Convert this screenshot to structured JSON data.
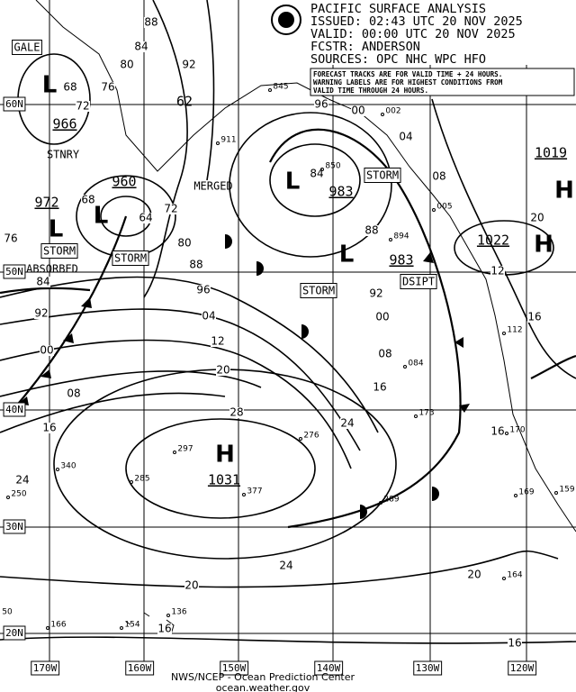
{
  "header": {
    "title": "PACIFIC SURFACE ANALYSIS",
    "issued": "ISSUED: 02:43 UTC 20 NOV 2025",
    "valid": "VALID:  00:00 UTC 20 NOV 2025",
    "forecaster": "FCSTR:  ANDERSON",
    "sources": "SOURCES: OPC NHC WPC HFO"
  },
  "note": [
    "FORECAST TRACKS ARE FOR VALID TIME + 24 HOURS.",
    "WARNING LABELS ARE FOR HIGHEST CONDITIONS FROM",
    "VALID TIME THROUGH 24 HOURS."
  ],
  "longitude_labels": [
    "170W",
    "160W",
    "150W",
    "140W",
    "130W",
    "120W"
  ],
  "latitude_labels": [
    "60N",
    "50N",
    "40N",
    "30N",
    "20N"
  ],
  "warnings": [
    "GALE",
    "STORM",
    "STORM",
    "STORM",
    "STORM",
    "DSIPT"
  ],
  "system_notes": [
    "STNRY",
    "ABSORBED",
    "MERGED"
  ],
  "centers": [
    {
      "symbol": "L",
      "pressure": "966"
    },
    {
      "symbol": "L",
      "pressure": "972"
    },
    {
      "symbol": "L",
      "pressure": "960"
    },
    {
      "symbol": "L",
      "pressure": "983"
    },
    {
      "symbol": "L",
      "pressure": "983"
    },
    {
      "symbol": "H",
      "pressure": "1031"
    },
    {
      "symbol": "H",
      "pressure": "1022"
    },
    {
      "symbol": "H",
      "pressure": "1019"
    }
  ],
  "other_pressure": "62",
  "isobar_labels": [
    "88",
    "84",
    "80",
    "76",
    "92",
    "72",
    "68",
    "64",
    "72",
    "68",
    "76",
    "80",
    "84",
    "88",
    "92",
    "96",
    "00",
    "04",
    "08",
    "12",
    "16",
    "20",
    "24",
    "28",
    "24",
    "24",
    "20",
    "16",
    "16",
    "20",
    "16",
    "20",
    "92",
    "88",
    "00",
    "08",
    "16",
    "96",
    "00",
    "04",
    "08",
    "12",
    "16",
    "84"
  ],
  "station_values": [
    "845",
    "911",
    "850",
    "002",
    "005",
    "894",
    "084",
    "112",
    "173",
    "170",
    "169",
    "159",
    "297",
    "276",
    "285",
    "377",
    "340",
    "250",
    "289",
    "164",
    "136",
    "154",
    "166",
    "50"
  ],
  "footer": [
    "NWS/NCEP - Ocean Prediction Center",
    "ocean.weather.gov"
  ]
}
